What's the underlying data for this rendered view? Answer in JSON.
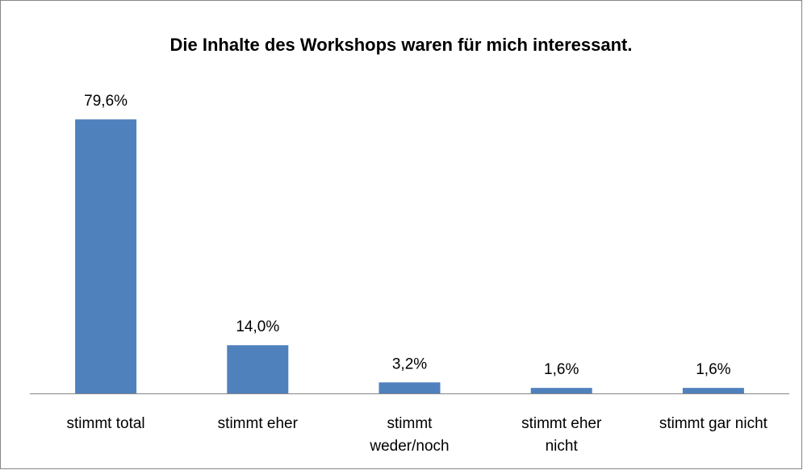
{
  "chart_data": {
    "type": "bar",
    "title": "Die Inhalte des Workshops waren für mich interessant.",
    "categories": [
      "stimmt total",
      "stimmt eher",
      "stimmt weder/noch",
      "stimmt eher nicht",
      "stimmt gar nicht"
    ],
    "values": [
      79.6,
      14.0,
      3.2,
      1.6,
      1.6
    ],
    "value_labels": [
      "79,6%",
      "14,0%",
      "3,2%",
      "1,6%",
      "1,6%"
    ],
    "color": "#4f81bd"
  }
}
